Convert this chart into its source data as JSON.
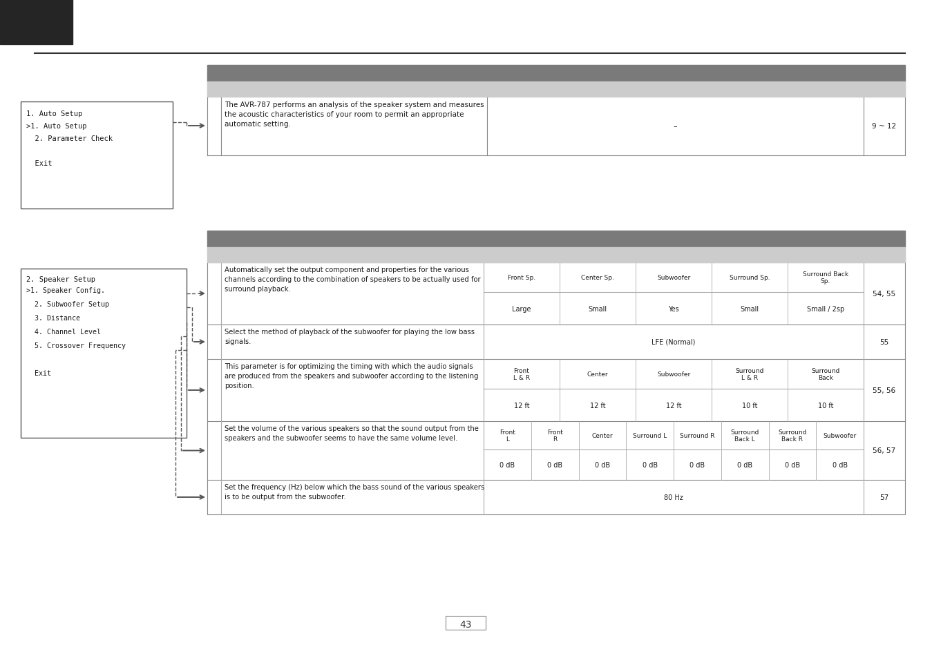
{
  "bg_color": "#ffffff",
  "dark_header_color": "#252525",
  "section_header_color": "#7a7a7a",
  "table_header_color": "#cccccc",
  "border_color": "#888888",
  "text_color": "#1a1a1a",
  "page_number": "43",
  "table1": {
    "rows": [
      {
        "description": "The AVR-787 performs an analysis of the speaker system and measures\nthe acoustic characteristics of your room to permit an appropriate\nautomatic setting.",
        "default": "–",
        "page": "9 ~ 12"
      }
    ]
  },
  "table2_rows": [
    {
      "description": "Automatically set the output component and properties for the various\nchannels according to the combination of speakers to be actually used for\nsurround playback.",
      "default_headers": [
        "Front Sp.",
        "Center Sp.",
        "Subwoofer",
        "Surround Sp.",
        "Surround Back\nSp."
      ],
      "default_values": [
        "Large",
        "Small",
        "Yes",
        "Small",
        "Small / 2sp"
      ],
      "page": "54, 55"
    },
    {
      "description": "Select the method of playback of the subwoofer for playing the low bass\nsignals.",
      "default_headers": [
        "LFE (Normal)"
      ],
      "default_values": [],
      "page": "55"
    },
    {
      "description": "This parameter is for optimizing the timing with which the audio signals\nare produced from the speakers and subwoofer according to the listening\nposition.",
      "default_headers": [
        "Front\nL & R",
        "Center",
        "Subwoofer",
        "Surround\nL & R",
        "Surround\nBack"
      ],
      "default_values": [
        "12 ft",
        "12 ft",
        "12 ft",
        "10 ft",
        "10 ft"
      ],
      "page": "55, 56"
    },
    {
      "description": "Set the volume of the various speakers so that the sound output from the\nspeakers and the subwoofer seems to have the same volume level.",
      "default_headers": [
        "Front\nL",
        "Front\nR",
        "Center",
        "Surround L",
        "Surround R",
        "Surround\nBack L",
        "Surround\nBack R",
        "Subwoofer"
      ],
      "default_values": [
        "0 dB",
        "0 dB",
        "0 dB",
        "0 dB",
        "0 dB",
        "0 dB",
        "0 dB",
        "0 dB"
      ],
      "page": "56, 57"
    },
    {
      "description": "Set the frequency (Hz) below which the bass sound of the various speakers\nis to be output from the subwoofer.",
      "default_headers": [
        "80 Hz"
      ],
      "default_values": [],
      "page": "57"
    }
  ],
  "menu1_title": "1. Auto Setup",
  "menu1_lines": [
    ">1. Auto Setup",
    "  2. Parameter Check",
    "",
    "  Exit"
  ],
  "menu2_title": "2. Speaker Setup",
  "menu2_lines": [
    ">1. Speaker Config.",
    "  2. Subwoofer Setup",
    "  3. Distance",
    "  4. Channel Level",
    "  5. Crossover Frequency",
    "",
    "  Exit"
  ]
}
